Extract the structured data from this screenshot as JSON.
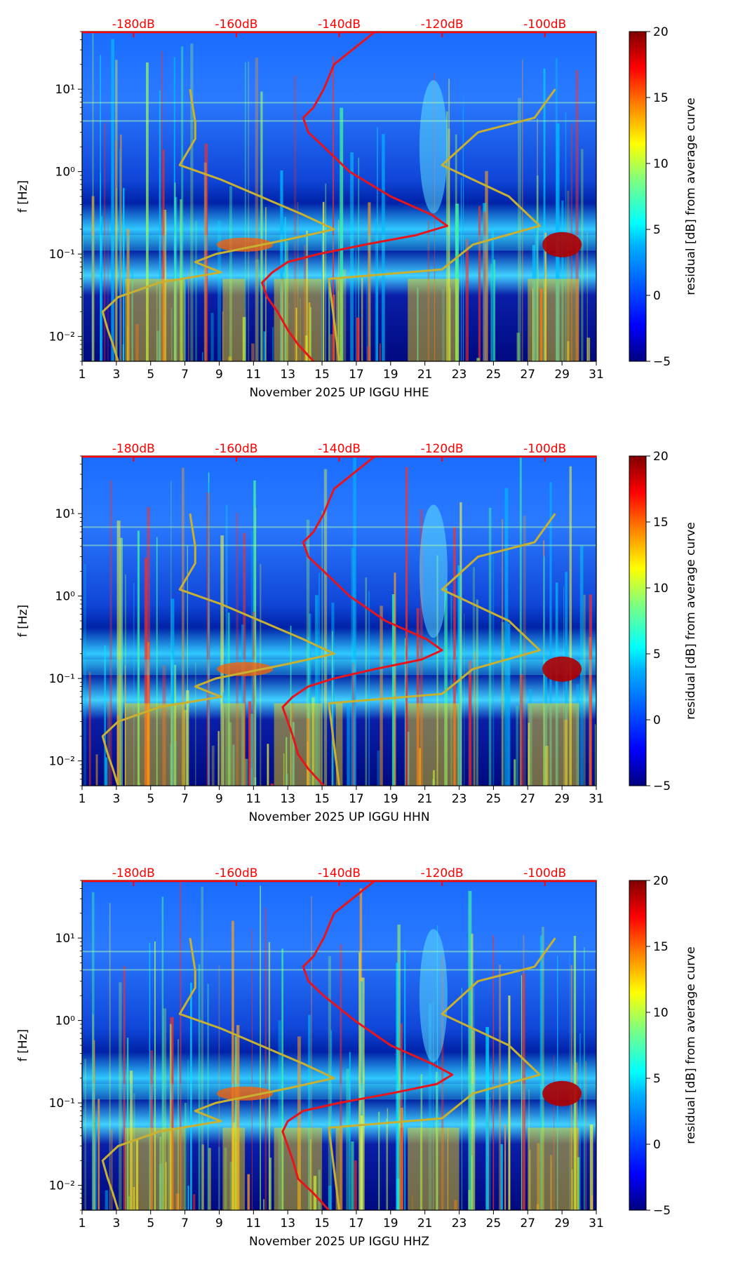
{
  "colors": {
    "psd_curve": "#e8141c",
    "noise_model": "#c8b030",
    "db_label": "#ff0000",
    "colormap": [
      "#00007f",
      "#0000ff",
      "#007fff",
      "#00ffff",
      "#7fff7f",
      "#ffff00",
      "#ff7f00",
      "#ff0000",
      "#7f0000"
    ]
  },
  "chart_data": [
    {
      "type": "heatmap",
      "title": "",
      "xlabel": "November 2025 UP IGGU  HHE",
      "ylabel": "f [Hz]",
      "colorbar_label": "residual [dB] from average curve",
      "x_ticks": [
        "1",
        "3",
        "5",
        "7",
        "9",
        "11",
        "13",
        "15",
        "17",
        "19",
        "21",
        "23",
        "25",
        "27",
        "29",
        "31"
      ],
      "xlim": [
        1,
        31
      ],
      "y_ticks": [
        "10⁻²",
        "10⁻¹",
        "10⁰",
        "10¹"
      ],
      "ylim": [
        0.005,
        50
      ],
      "colorbar_ticks": [
        "20",
        "15",
        "10",
        "5",
        "0",
        "−5"
      ],
      "clim": [
        -5,
        20
      ],
      "db_scale_labels": [
        "-180dB",
        "-160dB",
        "-140dB",
        "-120dB",
        "-100dB"
      ],
      "db_scale_values": [
        -180,
        -160,
        -140,
        -120,
        -100
      ],
      "series": [
        {
          "name": "psd_curve",
          "values": [
            {
              "f": 0.005,
              "db": -145
            },
            {
              "f": 0.008,
              "db": -148
            },
            {
              "f": 0.012,
              "db": -150
            },
            {
              "f": 0.02,
              "db": -152
            },
            {
              "f": 0.03,
              "db": -154
            },
            {
              "f": 0.045,
              "db": -155
            },
            {
              "f": 0.06,
              "db": -153
            },
            {
              "f": 0.08,
              "db": -150
            },
            {
              "f": 0.1,
              "db": -144
            },
            {
              "f": 0.13,
              "db": -135
            },
            {
              "f": 0.17,
              "db": -125
            },
            {
              "f": 0.22,
              "db": -119
            },
            {
              "f": 0.3,
              "db": -122
            },
            {
              "f": 0.5,
              "db": -130
            },
            {
              "f": 1.0,
              "db": -138
            },
            {
              "f": 2.0,
              "db": -143
            },
            {
              "f": 3.0,
              "db": -146
            },
            {
              "f": 4.5,
              "db": -147
            },
            {
              "f": 6.0,
              "db": -145
            },
            {
              "f": 10.0,
              "db": -143
            },
            {
              "f": 20.0,
              "db": -141
            },
            {
              "f": 50.0,
              "db": -133
            }
          ]
        },
        {
          "name": "noise_model",
          "values": [
            {
              "f": 0.005,
              "db": -183
            },
            {
              "f": 0.008,
              "db": -184
            },
            {
              "f": 0.012,
              "db": -185
            },
            {
              "f": 0.02,
              "db": -186
            },
            {
              "f": 0.03,
              "db": -183
            },
            {
              "f": 0.045,
              "db": -175
            },
            {
              "f": 0.06,
              "db": -163
            },
            {
              "f": 0.08,
              "db": -168
            },
            {
              "f": 0.1,
              "db": -164
            },
            {
              "f": 0.15,
              "db": -150
            },
            {
              "f": 0.2,
              "db": -141
            },
            {
              "f": 0.3,
              "db": -147
            },
            {
              "f": 0.8,
              "db": -163
            },
            {
              "f": 1.2,
              "db": -171
            },
            {
              "f": 2.5,
              "db": -168
            },
            {
              "f": 4.0,
              "db": -168
            },
            {
              "f": 10.0,
              "db": -169
            }
          ]
        },
        {
          "name": "noise_model_high",
          "values": [
            {
              "f": 0.005,
              "db": -140
            },
            {
              "f": 0.05,
              "db": -142
            },
            {
              "f": 0.065,
              "db": -120
            },
            {
              "f": 0.13,
              "db": -114
            },
            {
              "f": 0.22,
              "db": -101
            },
            {
              "f": 0.5,
              "db": -107
            },
            {
              "f": 1.2,
              "db": -120
            },
            {
              "f": 3.0,
              "db": -113
            },
            {
              "f": 4.5,
              "db": -102
            },
            {
              "f": 10.0,
              "db": -98
            }
          ]
        }
      ]
    },
    {
      "type": "heatmap",
      "title": "",
      "xlabel": "November 2025 UP IGGU  HHN",
      "ylabel": "f [Hz]",
      "colorbar_label": "residual [dB] from average curve",
      "x_ticks": [
        "1",
        "3",
        "5",
        "7",
        "9",
        "11",
        "13",
        "15",
        "17",
        "19",
        "21",
        "23",
        "25",
        "27",
        "29",
        "31"
      ],
      "xlim": [
        1,
        31
      ],
      "y_ticks": [
        "10⁻²",
        "10⁻¹",
        "10⁰",
        "10¹"
      ],
      "ylim": [
        0.005,
        50
      ],
      "colorbar_ticks": [
        "20",
        "15",
        "10",
        "5",
        "0",
        "−5"
      ],
      "clim": [
        -5,
        20
      ],
      "db_scale_labels": [
        "-180dB",
        "-160dB",
        "-140dB",
        "-120dB",
        "-100dB"
      ],
      "db_scale_values": [
        -180,
        -160,
        -140,
        -120,
        -100
      ],
      "series": [
        {
          "name": "psd_curve",
          "values": [
            {
              "f": 0.005,
              "db": -143
            },
            {
              "f": 0.008,
              "db": -146
            },
            {
              "f": 0.012,
              "db": -148
            },
            {
              "f": 0.02,
              "db": -149
            },
            {
              "f": 0.03,
              "db": -150
            },
            {
              "f": 0.045,
              "db": -151
            },
            {
              "f": 0.06,
              "db": -149
            },
            {
              "f": 0.08,
              "db": -146
            },
            {
              "f": 0.1,
              "db": -141
            },
            {
              "f": 0.13,
              "db": -133
            },
            {
              "f": 0.17,
              "db": -124
            },
            {
              "f": 0.22,
              "db": -120
            },
            {
              "f": 0.3,
              "db": -123
            },
            {
              "f": 0.5,
              "db": -131
            },
            {
              "f": 1.0,
              "db": -138
            },
            {
              "f": 2.0,
              "db": -143
            },
            {
              "f": 3.0,
              "db": -146
            },
            {
              "f": 4.5,
              "db": -147
            },
            {
              "f": 6.0,
              "db": -145
            },
            {
              "f": 10.0,
              "db": -143
            },
            {
              "f": 20.0,
              "db": -141
            },
            {
              "f": 50.0,
              "db": -133
            }
          ]
        },
        {
          "name": "noise_model",
          "values": [
            {
              "f": 0.005,
              "db": -183
            },
            {
              "f": 0.008,
              "db": -184
            },
            {
              "f": 0.012,
              "db": -185
            },
            {
              "f": 0.02,
              "db": -186
            },
            {
              "f": 0.03,
              "db": -183
            },
            {
              "f": 0.045,
              "db": -175
            },
            {
              "f": 0.06,
              "db": -163
            },
            {
              "f": 0.08,
              "db": -168
            },
            {
              "f": 0.1,
              "db": -164
            },
            {
              "f": 0.15,
              "db": -150
            },
            {
              "f": 0.2,
              "db": -141
            },
            {
              "f": 0.3,
              "db": -147
            },
            {
              "f": 0.8,
              "db": -163
            },
            {
              "f": 1.2,
              "db": -171
            },
            {
              "f": 2.5,
              "db": -168
            },
            {
              "f": 4.0,
              "db": -168
            },
            {
              "f": 10.0,
              "db": -169
            }
          ]
        },
        {
          "name": "noise_model_high",
          "values": [
            {
              "f": 0.005,
              "db": -140
            },
            {
              "f": 0.05,
              "db": -142
            },
            {
              "f": 0.065,
              "db": -120
            },
            {
              "f": 0.13,
              "db": -114
            },
            {
              "f": 0.22,
              "db": -101
            },
            {
              "f": 0.5,
              "db": -107
            },
            {
              "f": 1.2,
              "db": -120
            },
            {
              "f": 3.0,
              "db": -113
            },
            {
              "f": 4.5,
              "db": -102
            },
            {
              "f": 10.0,
              "db": -98
            }
          ]
        }
      ]
    },
    {
      "type": "heatmap",
      "title": "",
      "xlabel": "November 2025 UP IGGU  HHZ",
      "ylabel": "f [Hz]",
      "colorbar_label": "residual [dB] from average curve",
      "x_ticks": [
        "1",
        "3",
        "5",
        "7",
        "9",
        "11",
        "13",
        "15",
        "17",
        "19",
        "21",
        "23",
        "25",
        "27",
        "29",
        "31"
      ],
      "xlim": [
        1,
        31
      ],
      "y_ticks": [
        "10⁻²",
        "10⁻¹",
        "10⁰",
        "10¹"
      ],
      "ylim": [
        0.005,
        50
      ],
      "colorbar_ticks": [
        "20",
        "15",
        "10",
        "5",
        "0",
        "−5"
      ],
      "clim": [
        -5,
        20
      ],
      "db_scale_labels": [
        "-180dB",
        "-160dB",
        "-140dB",
        "-120dB",
        "-100dB"
      ],
      "db_scale_values": [
        -180,
        -160,
        -140,
        -120,
        -100
      ],
      "series": [
        {
          "name": "psd_curve",
          "values": [
            {
              "f": 0.005,
              "db": -142
            },
            {
              "f": 0.008,
              "db": -145
            },
            {
              "f": 0.012,
              "db": -148
            },
            {
              "f": 0.02,
              "db": -149
            },
            {
              "f": 0.03,
              "db": -150
            },
            {
              "f": 0.045,
              "db": -151
            },
            {
              "f": 0.06,
              "db": -150
            },
            {
              "f": 0.08,
              "db": -147
            },
            {
              "f": 0.1,
              "db": -140
            },
            {
              "f": 0.13,
              "db": -130
            },
            {
              "f": 0.17,
              "db": -121
            },
            {
              "f": 0.22,
              "db": -118
            },
            {
              "f": 0.3,
              "db": -122
            },
            {
              "f": 0.5,
              "db": -130
            },
            {
              "f": 1.0,
              "db": -137
            },
            {
              "f": 2.0,
              "db": -143
            },
            {
              "f": 3.0,
              "db": -146
            },
            {
              "f": 4.5,
              "db": -147
            },
            {
              "f": 6.0,
              "db": -145
            },
            {
              "f": 10.0,
              "db": -143
            },
            {
              "f": 20.0,
              "db": -141
            },
            {
              "f": 50.0,
              "db": -133
            }
          ]
        },
        {
          "name": "noise_model",
          "values": [
            {
              "f": 0.005,
              "db": -183
            },
            {
              "f": 0.008,
              "db": -184
            },
            {
              "f": 0.012,
              "db": -185
            },
            {
              "f": 0.02,
              "db": -186
            },
            {
              "f": 0.03,
              "db": -183
            },
            {
              "f": 0.045,
              "db": -175
            },
            {
              "f": 0.06,
              "db": -163
            },
            {
              "f": 0.08,
              "db": -168
            },
            {
              "f": 0.1,
              "db": -164
            },
            {
              "f": 0.15,
              "db": -150
            },
            {
              "f": 0.2,
              "db": -141
            },
            {
              "f": 0.3,
              "db": -147
            },
            {
              "f": 0.8,
              "db": -163
            },
            {
              "f": 1.2,
              "db": -171
            },
            {
              "f": 2.5,
              "db": -168
            },
            {
              "f": 4.0,
              "db": -168
            },
            {
              "f": 10.0,
              "db": -169
            }
          ]
        },
        {
          "name": "noise_model_high",
          "values": [
            {
              "f": 0.005,
              "db": -140
            },
            {
              "f": 0.05,
              "db": -142
            },
            {
              "f": 0.065,
              "db": -120
            },
            {
              "f": 0.13,
              "db": -114
            },
            {
              "f": 0.22,
              "db": -101
            },
            {
              "f": 0.5,
              "db": -107
            },
            {
              "f": 1.2,
              "db": -120
            },
            {
              "f": 3.0,
              "db": -113
            },
            {
              "f": 4.5,
              "db": -102
            },
            {
              "f": 10.0,
              "db": -98
            }
          ]
        }
      ]
    }
  ]
}
